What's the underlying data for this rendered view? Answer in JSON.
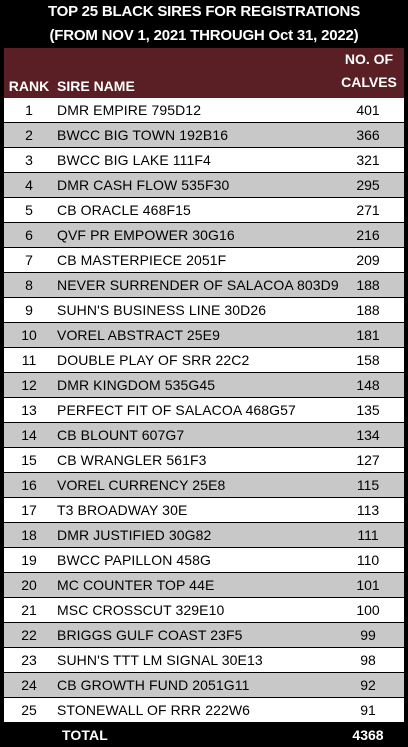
{
  "title": {
    "line1": "TOP 25 BLACK SIRES FOR REGISTRATIONS",
    "line2": "(FROM NOV 1, 2021 THROUGH Oct 31, 2022)"
  },
  "header": {
    "rank": "RANK",
    "sire_name": "SIRE NAME",
    "calves_line1": "NO. OF",
    "calves_line2": "CALVES"
  },
  "rows": [
    {
      "rank": "1",
      "name": "DMR EMPIRE 795D12",
      "calves": "401"
    },
    {
      "rank": "2",
      "name": "BWCC BIG TOWN 192B16",
      "calves": "366"
    },
    {
      "rank": "3",
      "name": "BWCC BIG LAKE 111F4",
      "calves": "321"
    },
    {
      "rank": "4",
      "name": "DMR CASH FLOW 535F30",
      "calves": "295"
    },
    {
      "rank": "5",
      "name": "CB ORACLE 468F15",
      "calves": "271"
    },
    {
      "rank": "6",
      "name": "QVF PR EMPOWER 30G16",
      "calves": "216"
    },
    {
      "rank": "7",
      "name": "CB MASTERPIECE 2051F",
      "calves": "209"
    },
    {
      "rank": "8",
      "name": "NEVER SURRENDER OF SALACOA 803D9",
      "calves": "188"
    },
    {
      "rank": "9",
      "name": "SUHN'S BUSINESS LINE 30D26",
      "calves": "188"
    },
    {
      "rank": "10",
      "name": "VOREL ABSTRACT 25E9",
      "calves": "181"
    },
    {
      "rank": "11",
      "name": "DOUBLE PLAY OF SRR 22C2",
      "calves": "158"
    },
    {
      "rank": "12",
      "name": "DMR KINGDOM 535G45",
      "calves": "148"
    },
    {
      "rank": "13",
      "name": "PERFECT FIT OF SALACOA 468G57",
      "calves": "135"
    },
    {
      "rank": "14",
      "name": "CB BLOUNT 607G7",
      "calves": "134"
    },
    {
      "rank": "15",
      "name": "CB WRANGLER 561F3",
      "calves": "127"
    },
    {
      "rank": "16",
      "name": "VOREL CURRENCY 25E8",
      "calves": "115"
    },
    {
      "rank": "17",
      "name": "T3 BROADWAY 30E",
      "calves": "113"
    },
    {
      "rank": "18",
      "name": "DMR JUSTIFIED 30G82",
      "calves": "111"
    },
    {
      "rank": "19",
      "name": "BWCC PAPILLON 458G",
      "calves": "110"
    },
    {
      "rank": "20",
      "name": "MC COUNTER TOP 44E",
      "calves": "101"
    },
    {
      "rank": "21",
      "name": "MSC CROSSCUT 329E10",
      "calves": "100"
    },
    {
      "rank": "22",
      "name": "BRIGGS GULF COAST 23F5",
      "calves": "99"
    },
    {
      "rank": "23",
      "name": "SUHN'S TTT LM SIGNAL 30E13",
      "calves": "98"
    },
    {
      "rank": "24",
      "name": "CB GROWTH FUND 2051G11",
      "calves": "92"
    },
    {
      "rank": "25",
      "name": "STONEWALL OF RRR 222W6",
      "calves": "91"
    }
  ],
  "total": {
    "label": "TOTAL",
    "value": "4368"
  },
  "colors": {
    "header_bg": "#5a1f24",
    "row_odd": "#ffffff",
    "row_even": "#c8c8c8",
    "page_bg": "#000000"
  }
}
